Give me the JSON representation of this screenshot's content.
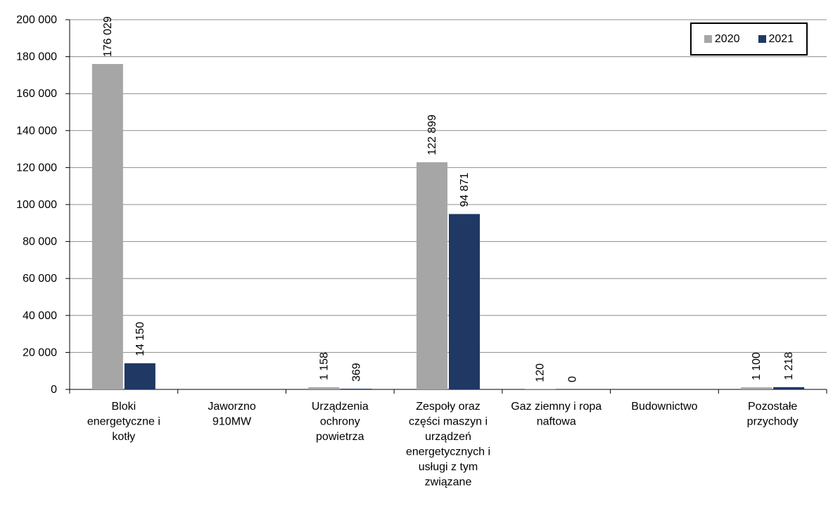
{
  "chart_data": {
    "type": "bar",
    "title": "",
    "xlabel": "",
    "ylabel": "",
    "ylim": [
      0,
      200000
    ],
    "yticks": [
      0,
      20000,
      40000,
      60000,
      80000,
      100000,
      120000,
      140000,
      160000,
      180000,
      200000
    ],
    "ytick_labels": [
      "0",
      "20 000",
      "40 000",
      "60 000",
      "80 000",
      "100 000",
      "120 000",
      "140 000",
      "160 000",
      "180 000",
      "200 000"
    ],
    "grid": "horizontal",
    "legend_position": "top-right",
    "categories": [
      [
        "Bloki",
        "energetyczne i",
        "kotły"
      ],
      [
        "Jaworzno",
        "910MW"
      ],
      [
        "Urządzenia",
        "ochrony",
        "powietrza"
      ],
      [
        "Zespoły oraz",
        "części maszyn i",
        "urządzeń",
        "energetycznych i",
        "usługi z tym",
        "związane"
      ],
      [
        "Gaz ziemny i ropa",
        "naftowa"
      ],
      [
        "Budownictwo"
      ],
      [
        "Pozostałe",
        "przychody"
      ]
    ],
    "series": [
      {
        "name": "2020",
        "color": "#a6a6a6",
        "values": [
          176029,
          null,
          1158,
          122899,
          120,
          null,
          1100
        ],
        "labels": [
          "176 029",
          null,
          "1 158",
          "122 899",
          "120",
          null,
          "1 100"
        ]
      },
      {
        "name": "2021",
        "color": "#1f3864",
        "values": [
          14150,
          null,
          369,
          94871,
          0,
          null,
          1218
        ],
        "labels": [
          "14 150",
          null,
          "369",
          "94 871",
          "0",
          null,
          "1 218"
        ]
      }
    ]
  }
}
